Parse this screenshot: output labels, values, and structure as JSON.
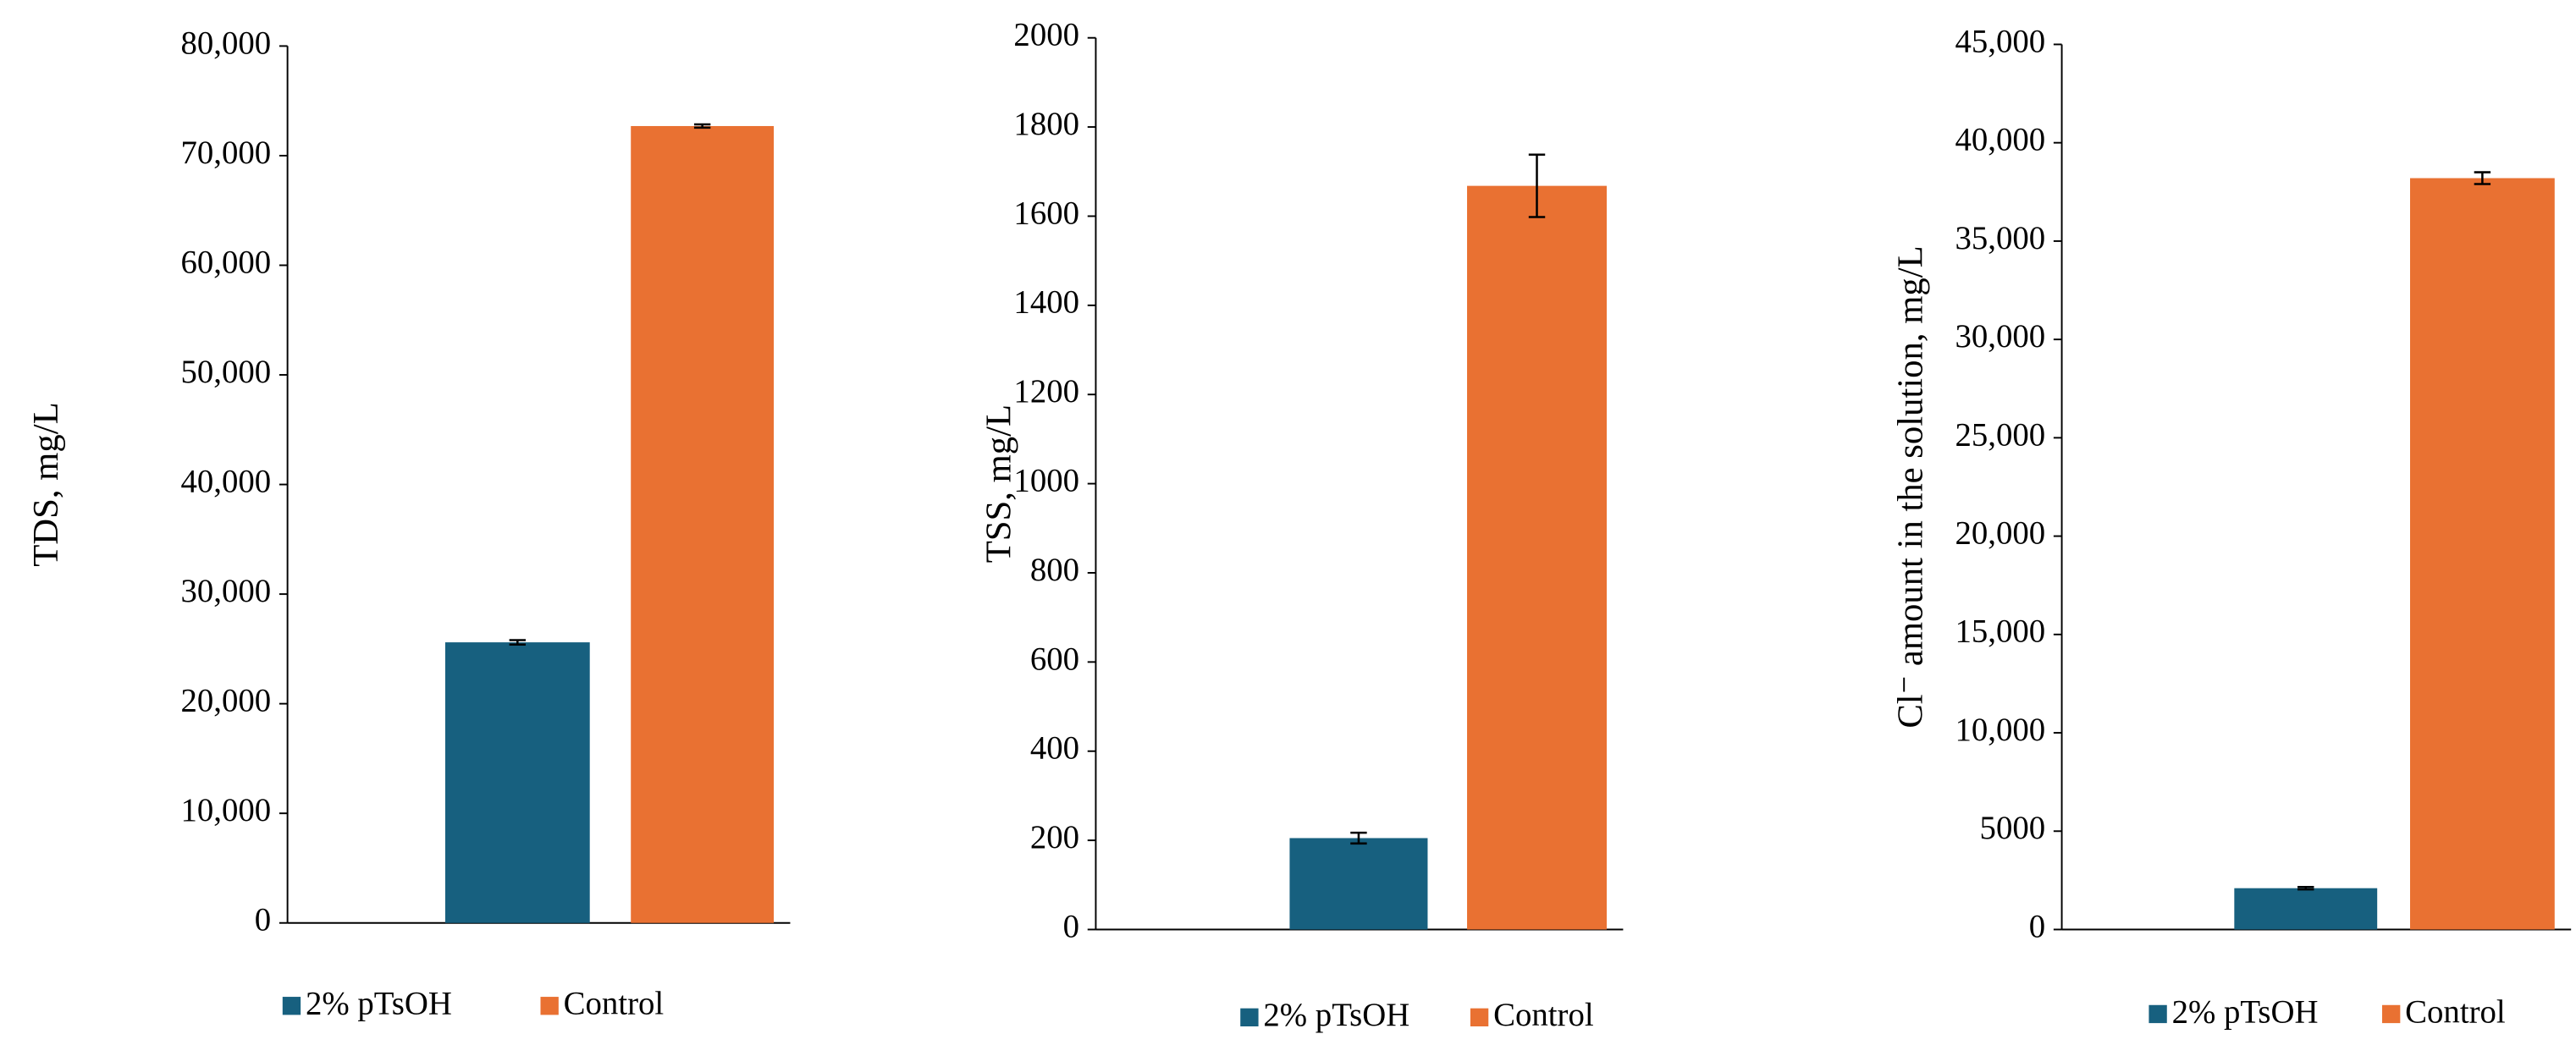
{
  "chart_data": [
    {
      "type": "bar",
      "y_label": "TDS, mg/L",
      "series": [
        {
          "name": "2% pTsOH",
          "color": "#17607f",
          "values": [
            25600
          ],
          "errors": [
            200
          ]
        },
        {
          "name": "Control",
          "color": "#e97132",
          "values": [
            72700
          ],
          "errors": [
            150
          ]
        }
      ],
      "ylim": [
        0,
        80000
      ],
      "yticks": [
        0,
        {
          "value": 10000,
          "label": "10,000"
        },
        {
          "value": 20000,
          "label": "20,000"
        },
        {
          "value": 30000,
          "label": "30,000"
        },
        {
          "value": 40000,
          "label": "40,000"
        },
        {
          "value": 50000,
          "label": "50,000"
        },
        {
          "value": 60000,
          "label": "60,000"
        },
        {
          "value": 70000,
          "label": "70,000"
        },
        {
          "value": 80000,
          "label": "80,000"
        }
      ],
      "legend": "bottom"
    },
    {
      "type": "bar",
      "y_label": "TSS, mg/L",
      "series": [
        {
          "name": "2% pTsOH",
          "color": "#17607f",
          "values": [
            205
          ],
          "errors": [
            12
          ]
        },
        {
          "name": "Control",
          "color": "#e97132",
          "values": [
            1668
          ],
          "errors": [
            70
          ]
        }
      ],
      "ylim": [
        0,
        2000
      ],
      "yticks": [
        0,
        200,
        400,
        600,
        800,
        1000,
        1200,
        1400,
        1600,
        1800,
        2000
      ],
      "legend": "bottom"
    },
    {
      "type": "bar",
      "y_label": "Cl⁻ amount in the solution, mg/L",
      "series": [
        {
          "name": "2% pTsOH",
          "color": "#17607f",
          "values": [
            2100
          ],
          "errors": [
            60
          ]
        },
        {
          "name": "Control",
          "color": "#e97132",
          "values": [
            38200
          ],
          "errors": [
            300
          ]
        }
      ],
      "ylim": [
        0,
        45000
      ],
      "yticks": [
        0,
        5000,
        {
          "value": 10000,
          "label": "10,000"
        },
        {
          "value": 15000,
          "label": "15,000"
        },
        {
          "value": 20000,
          "label": "20,000"
        },
        {
          "value": 25000,
          "label": "25,000"
        },
        {
          "value": 30000,
          "label": "30,000"
        },
        {
          "value": 35000,
          "label": "35,000"
        },
        {
          "value": 40000,
          "label": "40,000"
        },
        {
          "value": 45000,
          "label": "45,000"
        }
      ],
      "legend": "bottom"
    }
  ]
}
